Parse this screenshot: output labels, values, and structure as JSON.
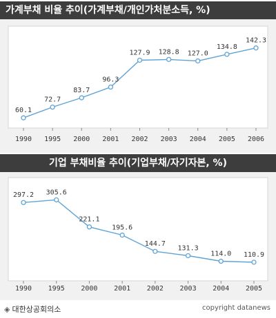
{
  "colors": {
    "line": "#5ea3d6",
    "marker_fill": "#ffffff",
    "plot_bg": "#ffffff",
    "panel_bg": "#f1f1f1",
    "title_bg": "#3d3d3d"
  },
  "chart_data": [
    {
      "type": "line",
      "title": "가계부채 비율 추이(가계부채/개인가처분소득, %)",
      "categories": [
        "1990",
        "1995",
        "2000",
        "2001",
        "2002",
        "2003",
        "2004",
        "2005",
        "2006"
      ],
      "values": [
        60.1,
        72.7,
        83.7,
        96.3,
        127.9,
        128.8,
        127.0,
        134.8,
        142.3
      ],
      "labels": [
        "60.1",
        "72.7",
        "83.7",
        "96.3",
        "127.9",
        "128.8",
        "127.0",
        "134.8",
        "142.3"
      ],
      "ylim": [
        40,
        155
      ],
      "grid": false
    },
    {
      "type": "line",
      "title": "기업 부채비율 추이(기업부채/자기자본, %)",
      "categories": [
        "1990",
        "1995",
        "2000",
        "2001",
        "2002",
        "2003",
        "2004",
        "2005"
      ],
      "values": [
        297.2,
        305.6,
        221.1,
        195.6,
        144.7,
        131.3,
        114.0,
        110.9
      ],
      "labels": [
        "297.2",
        "305.6",
        "221.1",
        "195.6",
        "144.7",
        "131.3",
        "114.0",
        "110.9"
      ],
      "ylim": [
        70,
        345
      ],
      "grid": false
    }
  ],
  "footer": {
    "marker": "◈",
    "source": "대한상공회의소",
    "credit": "copyright datanews"
  }
}
